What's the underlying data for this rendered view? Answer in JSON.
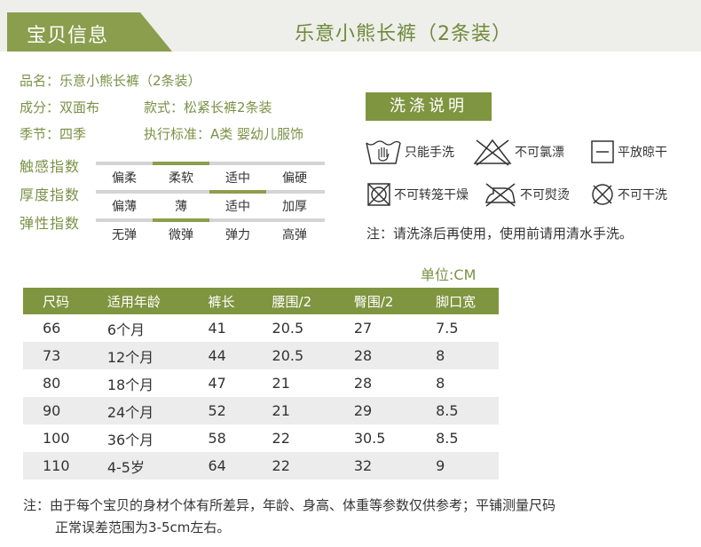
{
  "header": {
    "tab_label": "宝贝信息",
    "product_title": "乐意小熊长裤（2条装）",
    "colors": {
      "tab": "#8a9e4d",
      "bg": "#eeeeea",
      "accent": "#6f8a3a"
    }
  },
  "info": {
    "name": "品名：乐意小熊长裤（2条装）",
    "material": "成分：双面布",
    "style": "款式：松紧长裤2条装",
    "season": "季节：四季",
    "standard": "执行标准：A类 婴幼儿服饰"
  },
  "indices": [
    {
      "label": "触感指数",
      "options": [
        "偏柔",
        "柔软",
        "适中",
        "偏硬"
      ],
      "selected_index": 1
    },
    {
      "label": "厚度指数",
      "options": [
        "偏薄",
        "薄",
        "适中",
        "加厚"
      ],
      "selected_index": 2
    },
    {
      "label": "弹性指数",
      "options": [
        "无弹",
        "微弹",
        "弹力",
        "高弹"
      ],
      "selected_index": 1
    }
  ],
  "washing": {
    "title": "洗涤说明",
    "items": [
      {
        "icon": "hand-wash-icon",
        "label": "只能手洗"
      },
      {
        "icon": "no-bleach-icon",
        "label": "不可氯漂"
      },
      {
        "icon": "flat-dry-icon",
        "label": "平放晾干"
      },
      {
        "icon": "no-tumble-dry-icon",
        "label": "不可转笼干燥"
      },
      {
        "icon": "no-iron-icon",
        "label": "不可熨烫"
      },
      {
        "icon": "no-dry-clean-icon",
        "label": "不可干洗"
      }
    ],
    "note": "注：请洗涤后再使用，使用前请用清水手洗。"
  },
  "size_table": {
    "unit": "单位:CM",
    "headers": [
      "尺码",
      "适用年龄",
      "裤长",
      "腰围/2",
      "臀围/2",
      "脚口宽"
    ],
    "rows": [
      [
        "66",
        "6个月",
        "41",
        "20.5",
        "27",
        "7.5"
      ],
      [
        "73",
        "12个月",
        "44",
        "20.5",
        "28",
        "8"
      ],
      [
        "80",
        "18个月",
        "47",
        "21",
        "28",
        "8"
      ],
      [
        "90",
        "24个月",
        "52",
        "21",
        "29",
        "8.5"
      ],
      [
        "100",
        "36个月",
        "58",
        "22",
        "30.5",
        "8.5"
      ],
      [
        "110",
        "4-5岁",
        "64",
        "22",
        "32",
        "9"
      ]
    ]
  },
  "footnote": {
    "line1": "注：由于每个宝贝的身材个体有所差异，年龄、身高、体重等参数仅供参考；平铺测量尺码",
    "line2": "正常误差范围为3-5cm左右。"
  }
}
